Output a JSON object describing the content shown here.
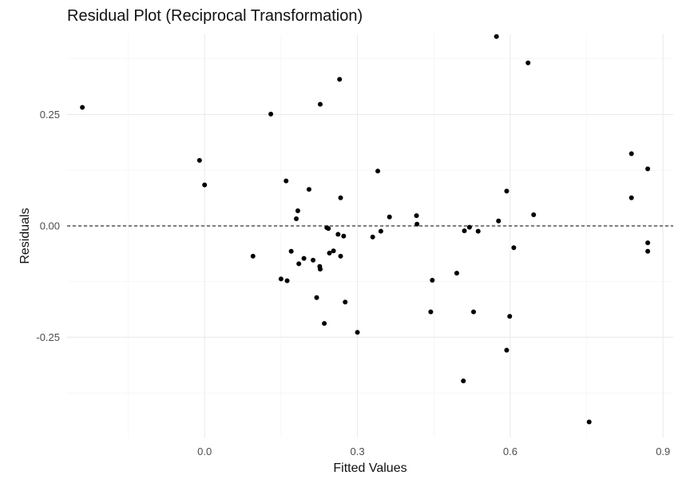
{
  "chart_data": {
    "type": "scatter",
    "title": "Residual Plot (Reciprocal Transformation)",
    "xlabel": "Fitted Values",
    "ylabel": "Residuals",
    "xlim": [
      -0.27,
      0.92
    ],
    "ylim": [
      -0.475,
      0.43
    ],
    "x_ticks": [
      0.0,
      0.3,
      0.6,
      0.9
    ],
    "x_tick_labels": [
      "0.0",
      "0.3",
      "0.6",
      "0.9"
    ],
    "y_ticks": [
      -0.25,
      0.0,
      0.25
    ],
    "y_tick_labels": [
      "-0.25",
      "0.00",
      "0.25"
    ],
    "reference_line": {
      "y": 0,
      "style": "dashed"
    },
    "grid": true,
    "legend": "none",
    "point_color": "#000000",
    "points": [
      {
        "x": -0.24,
        "y": 0.266
      },
      {
        "x": -0.01,
        "y": 0.147
      },
      {
        "x": 0.0,
        "y": 0.092
      },
      {
        "x": 0.095,
        "y": -0.068
      },
      {
        "x": 0.13,
        "y": 0.251
      },
      {
        "x": 0.15,
        "y": -0.119
      },
      {
        "x": 0.16,
        "y": 0.101
      },
      {
        "x": 0.162,
        "y": -0.123
      },
      {
        "x": 0.17,
        "y": -0.057
      },
      {
        "x": 0.18,
        "y": 0.016
      },
      {
        "x": 0.183,
        "y": 0.034
      },
      {
        "x": 0.185,
        "y": -0.085
      },
      {
        "x": 0.195,
        "y": -0.073
      },
      {
        "x": 0.205,
        "y": 0.082
      },
      {
        "x": 0.213,
        "y": -0.077
      },
      {
        "x": 0.22,
        "y": -0.161
      },
      {
        "x": 0.226,
        "y": -0.091
      },
      {
        "x": 0.227,
        "y": -0.097
      },
      {
        "x": 0.227,
        "y": 0.273
      },
      {
        "x": 0.235,
        "y": -0.219
      },
      {
        "x": 0.24,
        "y": -0.004
      },
      {
        "x": 0.243,
        "y": -0.006
      },
      {
        "x": 0.245,
        "y": -0.061
      },
      {
        "x": 0.253,
        "y": -0.056
      },
      {
        "x": 0.262,
        "y": -0.019
      },
      {
        "x": 0.265,
        "y": 0.329
      },
      {
        "x": 0.267,
        "y": 0.063
      },
      {
        "x": 0.267,
        "y": -0.068
      },
      {
        "x": 0.273,
        "y": -0.023
      },
      {
        "x": 0.276,
        "y": -0.171
      },
      {
        "x": 0.3,
        "y": -0.239
      },
      {
        "x": 0.33,
        "y": -0.025
      },
      {
        "x": 0.34,
        "y": 0.123
      },
      {
        "x": 0.346,
        "y": -0.012
      },
      {
        "x": 0.363,
        "y": 0.02
      },
      {
        "x": 0.416,
        "y": 0.023
      },
      {
        "x": 0.417,
        "y": 0.004
      },
      {
        "x": 0.444,
        "y": -0.193
      },
      {
        "x": 0.447,
        "y": -0.122
      },
      {
        "x": 0.495,
        "y": -0.106
      },
      {
        "x": 0.508,
        "y": -0.348
      },
      {
        "x": 0.51,
        "y": -0.011
      },
      {
        "x": 0.52,
        "y": -0.003
      },
      {
        "x": 0.528,
        "y": -0.193
      },
      {
        "x": 0.537,
        "y": -0.012
      },
      {
        "x": 0.573,
        "y": 0.425
      },
      {
        "x": 0.577,
        "y": 0.011
      },
      {
        "x": 0.593,
        "y": 0.078
      },
      {
        "x": 0.593,
        "y": -0.279
      },
      {
        "x": 0.599,
        "y": -0.203
      },
      {
        "x": 0.607,
        "y": -0.049
      },
      {
        "x": 0.635,
        "y": 0.366
      },
      {
        "x": 0.646,
        "y": 0.025
      },
      {
        "x": 0.755,
        "y": -0.44
      },
      {
        "x": 0.838,
        "y": 0.162
      },
      {
        "x": 0.838,
        "y": 0.063
      },
      {
        "x": 0.87,
        "y": 0.128
      },
      {
        "x": 0.87,
        "y": -0.038
      },
      {
        "x": 0.87,
        "y": -0.057
      }
    ]
  }
}
